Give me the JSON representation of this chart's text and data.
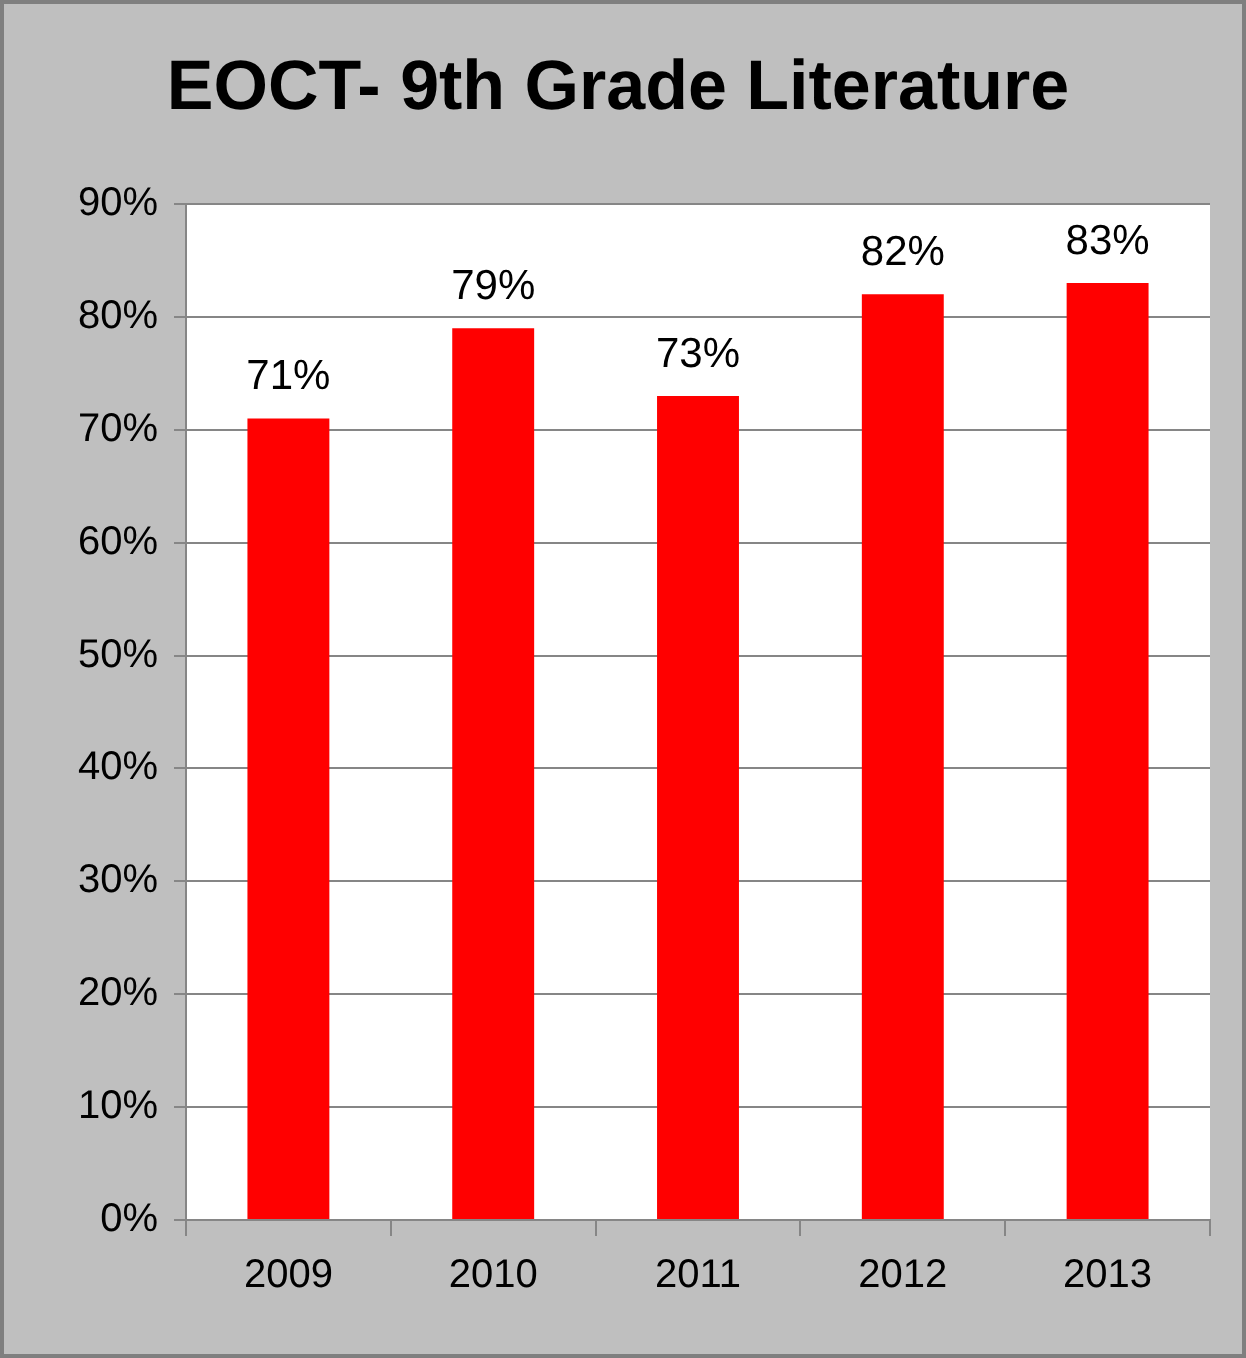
{
  "chart_data": {
    "type": "bar",
    "title": "EOCT- 9th Grade Literature",
    "categories": [
      "2009",
      "2010",
      "2011",
      "2012",
      "2013"
    ],
    "values": [
      71,
      79,
      73,
      82,
      83
    ],
    "value_labels": [
      "71%",
      "79%",
      "73%",
      "82%",
      "83%"
    ],
    "color": "#ff0000",
    "ylim": [
      0,
      90
    ],
    "yticks": [
      {
        "value": 0,
        "label": "0%"
      },
      {
        "value": 10,
        "label": "10%"
      },
      {
        "value": 20,
        "label": "20%"
      },
      {
        "value": 30,
        "label": "30%"
      },
      {
        "value": 40,
        "label": "40%"
      },
      {
        "value": 50,
        "label": "50%"
      },
      {
        "value": 60,
        "label": "60%"
      },
      {
        "value": 70,
        "label": "70%"
      },
      {
        "value": 80,
        "label": "80%"
      },
      {
        "value": 90,
        "label": "90%"
      }
    ],
    "grid": "y",
    "legend": false
  }
}
